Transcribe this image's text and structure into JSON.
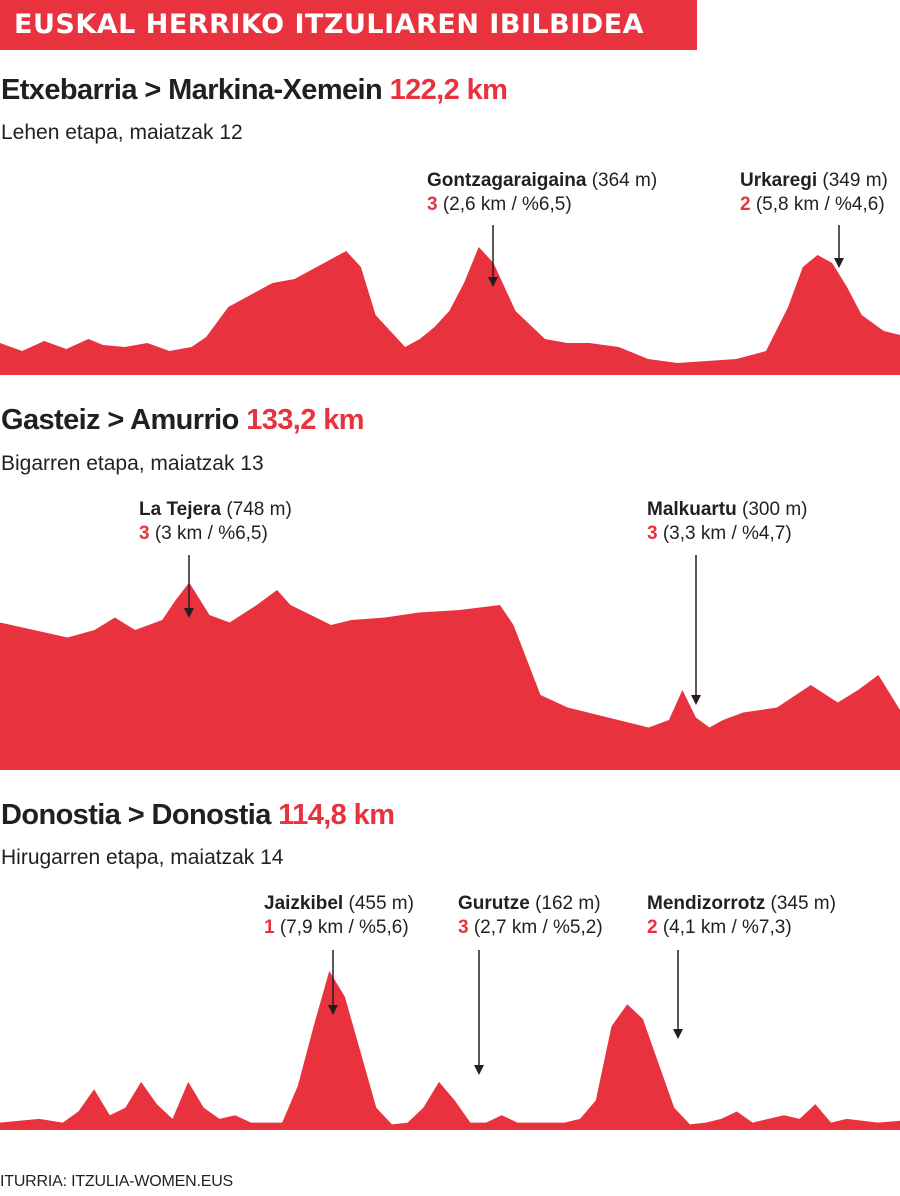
{
  "header": {
    "title": "EUSKAL HERRIKO ITZULIAREN IBILBIDEA"
  },
  "colors": {
    "accent": "#e8323e",
    "text": "#231f20"
  },
  "stages": [
    {
      "route": "Etxebarria > Markina-Xemein",
      "distance": "122,2 km",
      "subtitle": "Lehen etapa, maiatzak 12",
      "climbs": [
        {
          "name": "Gontzagaraigaina",
          "height": "(364 m)",
          "category": "3",
          "details": "(2,6 km / %6,5)"
        },
        {
          "name": "Urkaregi",
          "height": "(349 m)",
          "category": "2",
          "details": "(5,8 km / %4,6)"
        }
      ]
    },
    {
      "route": "Gasteiz > Amurrio",
      "distance": "133,2 km",
      "subtitle": "Bigarren etapa, maiatzak 13",
      "climbs": [
        {
          "name": "La Tejera",
          "height": "(748 m)",
          "category": "3",
          "details": "(3 km / %6,5)"
        },
        {
          "name": "Malkuartu",
          "height": "(300 m)",
          "category": "3",
          "details": "(3,3 km / %4,7)"
        }
      ]
    },
    {
      "route": "Donostia > Donostia",
      "distance": "114,8 km",
      "subtitle": "Hirugarren etapa, maiatzak 14",
      "climbs": [
        {
          "name": "Jaizkibel",
          "height": "(455 m)",
          "category": "1",
          "details": "(7,9 km / %5,6)"
        },
        {
          "name": "Gurutze",
          "height": "(162 m)",
          "category": "3",
          "details": "(2,7 km / %5,2)"
        },
        {
          "name": "Mendizorrotz",
          "height": "(345 m)",
          "category": "2",
          "details": "(4,1 km / %7,3)"
        }
      ]
    }
  ],
  "chart_data": [
    {
      "type": "area",
      "title": "Etxebarria > Markina-Xemein 122,2 km",
      "x_unit": "km",
      "y_unit": "m",
      "x_range": [
        0,
        122.2
      ],
      "y_range": [
        0,
        400
      ],
      "x": [
        0,
        3,
        6,
        9,
        12,
        14,
        17,
        20,
        23,
        26,
        28,
        31,
        34,
        37,
        40,
        43,
        45,
        47,
        49,
        51,
        55,
        57,
        59,
        61,
        63,
        65,
        67,
        70,
        74,
        77,
        80,
        84,
        88,
        92,
        96,
        100,
        104,
        107,
        109,
        111,
        113,
        115,
        117,
        120,
        122.2
      ],
      "y": [
        80,
        60,
        85,
        65,
        90,
        75,
        70,
        80,
        60,
        70,
        95,
        170,
        200,
        230,
        240,
        270,
        290,
        310,
        270,
        150,
        70,
        90,
        120,
        160,
        230,
        320,
        280,
        160,
        90,
        80,
        80,
        70,
        40,
        30,
        35,
        40,
        60,
        170,
        270,
        300,
        280,
        220,
        150,
        110,
        100
      ]
    },
    {
      "type": "area",
      "title": "Gasteiz > Amurrio 133,2 km",
      "x_unit": "km",
      "y_unit": "m",
      "x_range": [
        0,
        133.2
      ],
      "y_range": [
        0,
        900
      ],
      "x": [
        0,
        5,
        10,
        14,
        17,
        20,
        24,
        26,
        28,
        31,
        34,
        38,
        41,
        43,
        46,
        49,
        52,
        57,
        62,
        68,
        74,
        76,
        80,
        84,
        90,
        96,
        99,
        101,
        103,
        105,
        107,
        110,
        115,
        120,
        124,
        127,
        130,
        133.2
      ],
      "y": [
        590,
        560,
        530,
        560,
        610,
        560,
        600,
        680,
        750,
        620,
        590,
        660,
        720,
        660,
        620,
        580,
        600,
        610,
        630,
        640,
        660,
        580,
        300,
        250,
        210,
        170,
        200,
        320,
        210,
        170,
        200,
        230,
        250,
        340,
        270,
        320,
        380,
        240
      ]
    },
    {
      "type": "area",
      "title": "Donostia > Donostia 114,8 km",
      "x_unit": "km",
      "y_unit": "m",
      "x_range": [
        0,
        114.8
      ],
      "y_range": [
        0,
        500
      ],
      "x": [
        0,
        5,
        8,
        10,
        12,
        14,
        16,
        18,
        20,
        22,
        24,
        26,
        28,
        30,
        32,
        34,
        36,
        38,
        40,
        42,
        44,
        46,
        48,
        50,
        52,
        54,
        56,
        58,
        60,
        62,
        64,
        66,
        68,
        70,
        72,
        74,
        76,
        78,
        80,
        82,
        84,
        86,
        88,
        90,
        92,
        94,
        96,
        98,
        100,
        102,
        104,
        106,
        108,
        110,
        112,
        114.8
      ],
      "y": [
        20,
        30,
        20,
        50,
        110,
        40,
        60,
        130,
        70,
        30,
        130,
        60,
        30,
        40,
        20,
        20,
        20,
        120,
        280,
        430,
        360,
        210,
        60,
        15,
        20,
        60,
        130,
        80,
        20,
        20,
        40,
        20,
        20,
        20,
        20,
        30,
        80,
        280,
        340,
        300,
        180,
        60,
        15,
        20,
        30,
        50,
        20,
        30,
        40,
        30,
        70,
        20,
        30,
        25,
        20,
        25
      ]
    }
  ],
  "source": "ITURRIA: ITZULIA-WOMEN.EUS"
}
